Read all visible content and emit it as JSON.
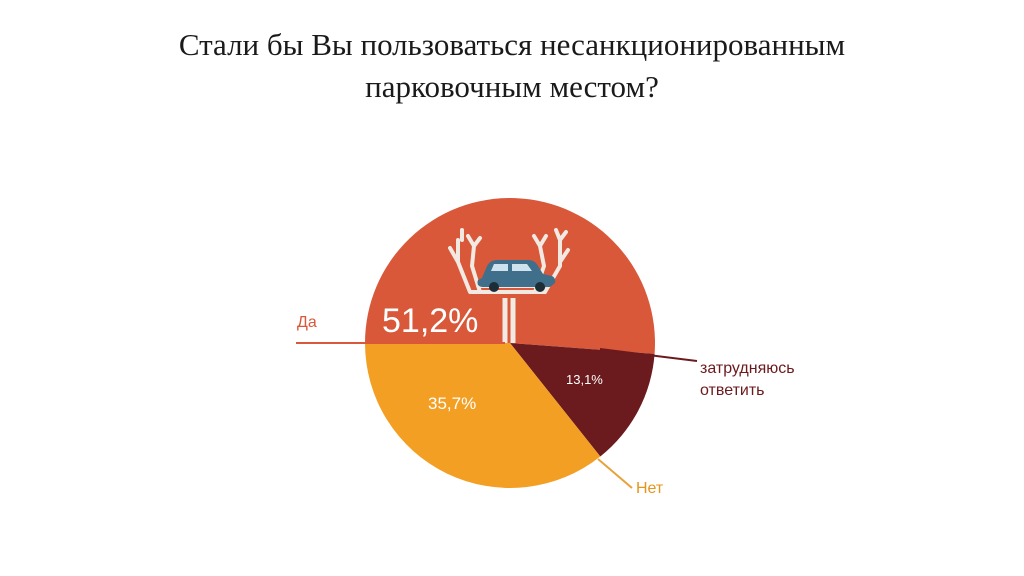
{
  "title_lines": [
    "Стали бы Вы пользоваться несанкционированным",
    "парковочным местом?"
  ],
  "chart_data": {
    "type": "pie",
    "title": "Стали бы Вы пользоваться несанкционированным парковочным местом?",
    "slices": [
      {
        "label": "Да",
        "value": 51.2,
        "display": "51,2%",
        "color": "#d9583a"
      },
      {
        "label": "затрудняюсь ответить",
        "label_lines": [
          "затрудняюсь",
          "ответить"
        ],
        "value": 13.1,
        "display": "13,1%",
        "color": "#6b1a1d"
      },
      {
        "label": "Нет",
        "value": 35.7,
        "display": "35,7%",
        "color": "#f39f23"
      }
    ],
    "legend": "none",
    "illustration": "tree-with-car"
  }
}
